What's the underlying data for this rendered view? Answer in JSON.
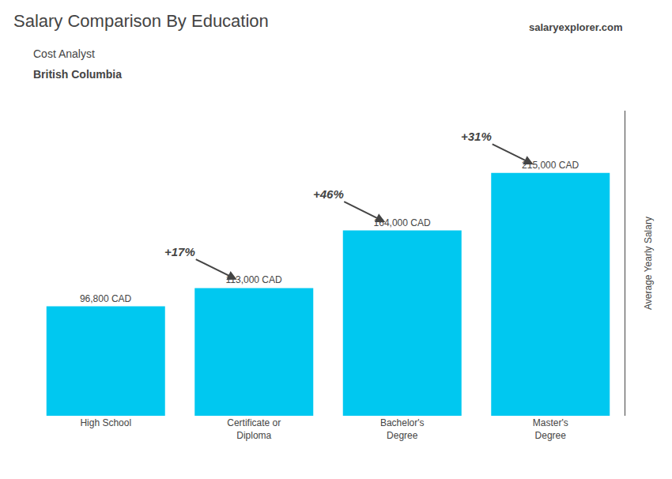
{
  "chart_data": {
    "type": "bar",
    "title": "Salary Comparison By Education",
    "subtitle": [
      "Cost Analyst",
      "British Columbia"
    ],
    "source": "salaryexplorer.com",
    "ylabel": "Average Yearly Salary",
    "categories": [
      "High School",
      "Certificate or\nDiploma",
      "Bachelor's\nDegree",
      "Master's\nDegree"
    ],
    "values": [
      96800,
      113000,
      164000,
      215000
    ],
    "value_labels": [
      "96,800 CAD",
      "113,000 CAD",
      "164,000 CAD",
      "215,000 CAD"
    ],
    "data_labels": true,
    "annotations": [
      "+17%",
      "+46%",
      "+31%"
    ],
    "color": "#00c8f0",
    "ylim": [
      0,
      270000
    ],
    "tick_labels": "x",
    "grid": false
  }
}
